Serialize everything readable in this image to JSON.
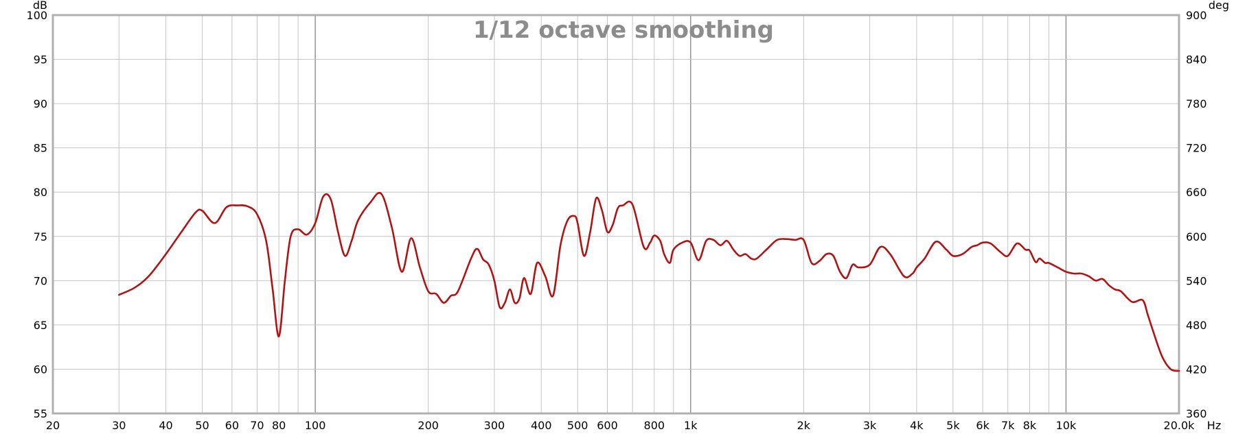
{
  "chart_data": {
    "type": "line",
    "title": "1/12 octave smoothing",
    "xscale": "log",
    "xlim": [
      20,
      20000
    ],
    "ylim": [
      55,
      100
    ],
    "y2lim": [
      360,
      900
    ],
    "x_unit": "Hz",
    "y_unit": "dB",
    "y2_unit": "deg",
    "grid": true,
    "x_ticks": [
      {
        "v": 20,
        "label": "20"
      },
      {
        "v": 30,
        "label": "30"
      },
      {
        "v": 40,
        "label": "40"
      },
      {
        "v": 50,
        "label": "50"
      },
      {
        "v": 60,
        "label": "60"
      },
      {
        "v": 70,
        "label": "70"
      },
      {
        "v": 80,
        "label": "80"
      },
      {
        "v": 100,
        "label": "100"
      },
      {
        "v": 200,
        "label": "200"
      },
      {
        "v": 300,
        "label": "300"
      },
      {
        "v": 400,
        "label": "400"
      },
      {
        "v": 500,
        "label": "500"
      },
      {
        "v": 600,
        "label": "600"
      },
      {
        "v": 800,
        "label": "800"
      },
      {
        "v": 1000,
        "label": "1k"
      },
      {
        "v": 2000,
        "label": "2k"
      },
      {
        "v": 3000,
        "label": "3k"
      },
      {
        "v": 4000,
        "label": "4k"
      },
      {
        "v": 5000,
        "label": "5k"
      },
      {
        "v": 6000,
        "label": "6k"
      },
      {
        "v": 7000,
        "label": "7k"
      },
      {
        "v": 8000,
        "label": "8k"
      },
      {
        "v": 10000,
        "label": "10k"
      },
      {
        "v": 20000,
        "label": "20.0k"
      }
    ],
    "x_gridlines": [
      20,
      30,
      40,
      50,
      60,
      70,
      80,
      90,
      100,
      200,
      300,
      400,
      500,
      600,
      700,
      800,
      900,
      1000,
      2000,
      3000,
      4000,
      5000,
      6000,
      7000,
      8000,
      9000,
      10000,
      20000
    ],
    "x_major_gridlines": [
      100,
      1000,
      10000
    ],
    "y_ticks": [
      55,
      60,
      65,
      70,
      75,
      80,
      85,
      90,
      95,
      100
    ],
    "y2_ticks": [
      360,
      420,
      480,
      540,
      600,
      660,
      720,
      780,
      840,
      900
    ],
    "series": [
      {
        "color": "#b31212",
        "x": [
          30,
          33,
          36,
          40,
          44,
          48,
          50,
          54,
          58,
          62,
          66,
          70,
          74,
          77,
          80,
          83,
          86,
          90,
          95,
          100,
          105,
          110,
          115,
          120,
          125,
          130,
          140,
          150,
          160,
          170,
          180,
          190,
          200,
          210,
          220,
          230,
          240,
          260,
          270,
          280,
          290,
          300,
          310,
          320,
          330,
          340,
          350,
          360,
          375,
          390,
          410,
          430,
          450,
          470,
          490,
          500,
          520,
          540,
          560,
          580,
          600,
          620,
          640,
          660,
          700,
          750,
          780,
          800,
          830,
          850,
          880,
          900,
          950,
          1000,
          1050,
          1100,
          1150,
          1200,
          1250,
          1300,
          1350,
          1400,
          1450,
          1500,
          1600,
          1700,
          1800,
          1900,
          2000,
          2100,
          2200,
          2300,
          2400,
          2500,
          2600,
          2700,
          2800,
          3000,
          3200,
          3400,
          3700,
          3900,
          4000,
          4200,
          4500,
          4800,
          5000,
          5300,
          5600,
          5800,
          6000,
          6300,
          6700,
          7000,
          7400,
          7800,
          8000,
          8300,
          8500,
          8800,
          9000,
          9500,
          10000,
          10500,
          11000,
          11500,
          12000,
          12500,
          13000,
          13500,
          14000,
          15000,
          16000,
          16500,
          17000,
          18000,
          19000,
          20000
        ],
        "values": [
          68.4,
          69.2,
          70.5,
          73.0,
          75.5,
          77.7,
          77.9,
          76.5,
          78.3,
          78.5,
          78.4,
          77.5,
          74.5,
          69.0,
          63.7,
          70.0,
          75.0,
          75.8,
          75.2,
          76.5,
          79.5,
          79.2,
          75.5,
          72.8,
          74.5,
          76.8,
          78.8,
          79.8,
          76.0,
          71.0,
          74.8,
          71.5,
          68.8,
          68.5,
          67.5,
          68.3,
          68.8,
          72.5,
          73.6,
          72.4,
          71.8,
          70.0,
          67.0,
          67.5,
          69.0,
          67.5,
          68.0,
          70.3,
          68.5,
          72.0,
          70.5,
          68.3,
          74.0,
          76.8,
          77.3,
          76.5,
          72.8,
          75.5,
          79.3,
          78.0,
          75.5,
          76.3,
          78.2,
          78.5,
          78.6,
          73.8,
          74.3,
          75.1,
          74.5,
          73.0,
          72.0,
          73.5,
          74.3,
          74.3,
          72.3,
          74.5,
          74.6,
          74.0,
          74.5,
          73.5,
          72.8,
          73.0,
          72.5,
          72.5,
          73.6,
          74.6,
          74.7,
          74.6,
          74.6,
          72.0,
          72.2,
          73.0,
          72.8,
          71.0,
          70.3,
          71.8,
          71.5,
          71.8,
          73.8,
          73.0,
          70.5,
          70.8,
          71.5,
          72.5,
          74.4,
          73.5,
          72.8,
          73.0,
          73.8,
          74.0,
          74.3,
          74.2,
          73.2,
          72.8,
          74.2,
          73.5,
          73.4,
          72.1,
          72.5,
          72.0,
          72.0,
          71.5,
          71.0,
          70.8,
          70.8,
          70.5,
          70.0,
          70.2,
          69.5,
          69.0,
          68.8,
          67.6,
          67.8,
          66.2,
          64.5,
          61.5,
          60.0,
          59.8
        ]
      }
    ]
  }
}
